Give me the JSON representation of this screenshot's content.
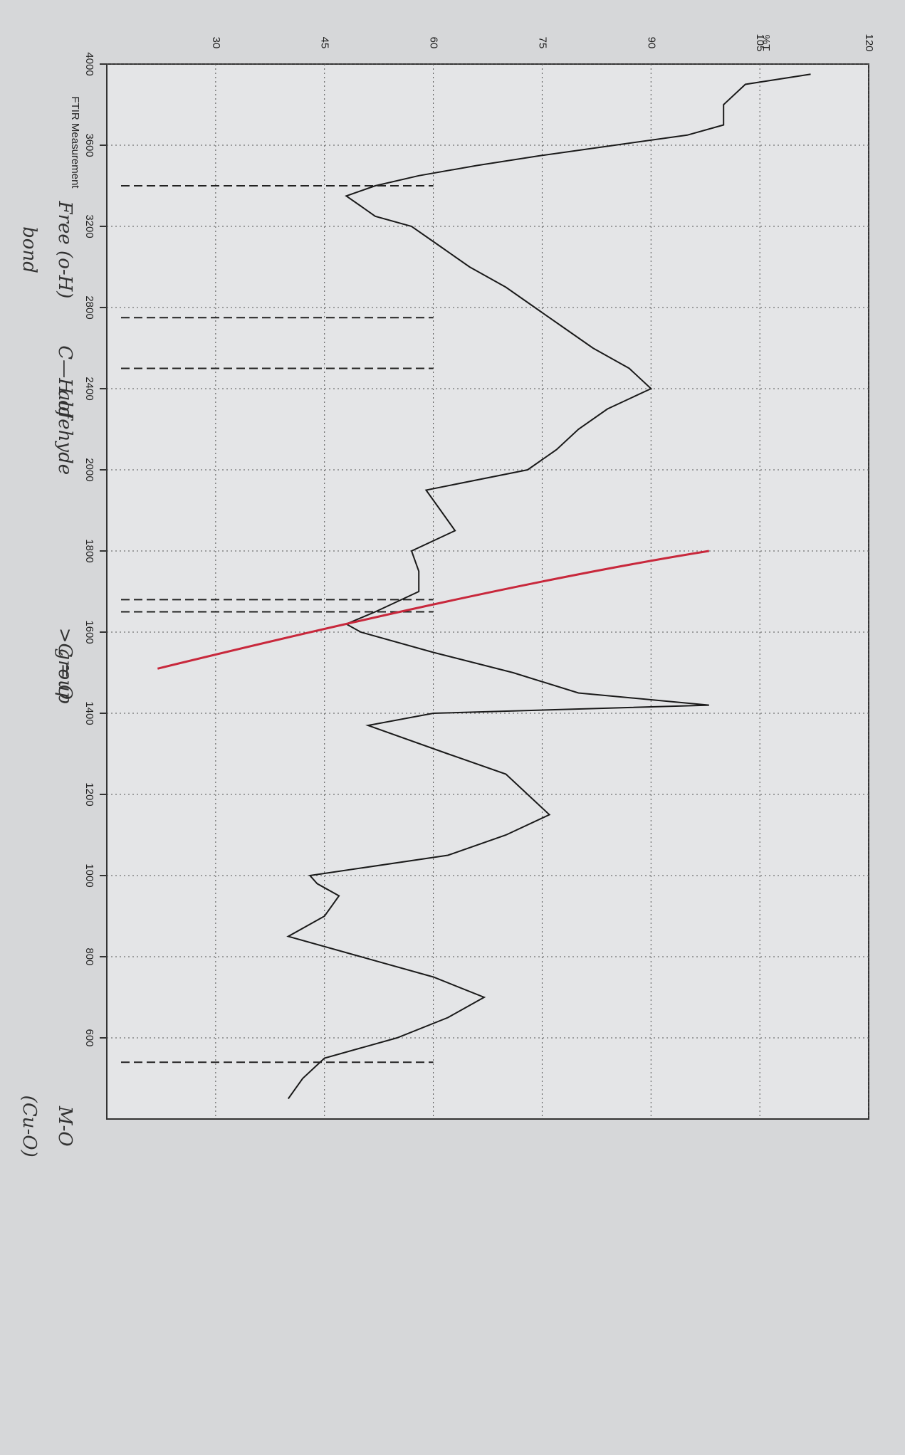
{
  "chart_data": {
    "type": "ftir",
    "title": "FTIR Measurement",
    "y_label": "%T",
    "x": [
      3950,
      3900,
      3800,
      3700,
      3650,
      3600,
      3550,
      3500,
      3450,
      3400,
      3350,
      3300,
      3250,
      3200,
      3100,
      3000,
      2900,
      2800,
      2700,
      2600,
      2500,
      2400,
      2300,
      2200,
      2100,
      2000,
      1950,
      1900,
      1850,
      1800,
      1750,
      1700,
      1650,
      1620,
      1600,
      1550,
      1500,
      1450,
      1420,
      1400,
      1370,
      1300,
      1250,
      1200,
      1150,
      1100,
      1050,
      1000,
      980,
      950,
      900,
      850,
      800,
      750,
      700,
      650,
      600,
      550,
      500,
      450
    ],
    "series": [
      {
        "name": "%T",
        "color": "#1a1a1a",
        "values": [
          112,
          103,
          100,
          100,
          95,
          85,
          75,
          66,
          58,
          52,
          48,
          50,
          52,
          57,
          61,
          65,
          70,
          74,
          78,
          82,
          87,
          90,
          84,
          80,
          77,
          73,
          59,
          61,
          63,
          57,
          58,
          58,
          52,
          48,
          50,
          60,
          71,
          80,
          98,
          60,
          51,
          62,
          70,
          73,
          76,
          70,
          62,
          43,
          44,
          47,
          45,
          40,
          50,
          60,
          67,
          62,
          55,
          45,
          42,
          40
        ]
      }
    ],
    "xlim": [
      4000,
      400
    ],
    "xticks": [
      4000,
      3600,
      3200,
      2800,
      2400,
      2000,
      1800,
      1600,
      1400,
      1200,
      1000,
      800,
      600
    ],
    "ylim": [
      15,
      120
    ],
    "yticks": [
      30,
      45,
      60,
      75,
      90,
      105,
      120
    ],
    "grid": true,
    "annotations": [
      {
        "text": "Free (o-H)",
        "x": 3400
      },
      {
        "text": "bond",
        "x": 3400
      },
      {
        "text": "C—H of",
        "x": 2750
      },
      {
        "text": "aldehyde",
        "x": 2500
      },
      {
        "text": ">C = O",
        "x": 1680
      },
      {
        "text": "group",
        "x": 1650
      },
      {
        "text": "M-O",
        "x": 540
      },
      {
        "text": "(Cu-O)",
        "x": 540
      }
    ],
    "highlight_color": "#c8283c"
  }
}
